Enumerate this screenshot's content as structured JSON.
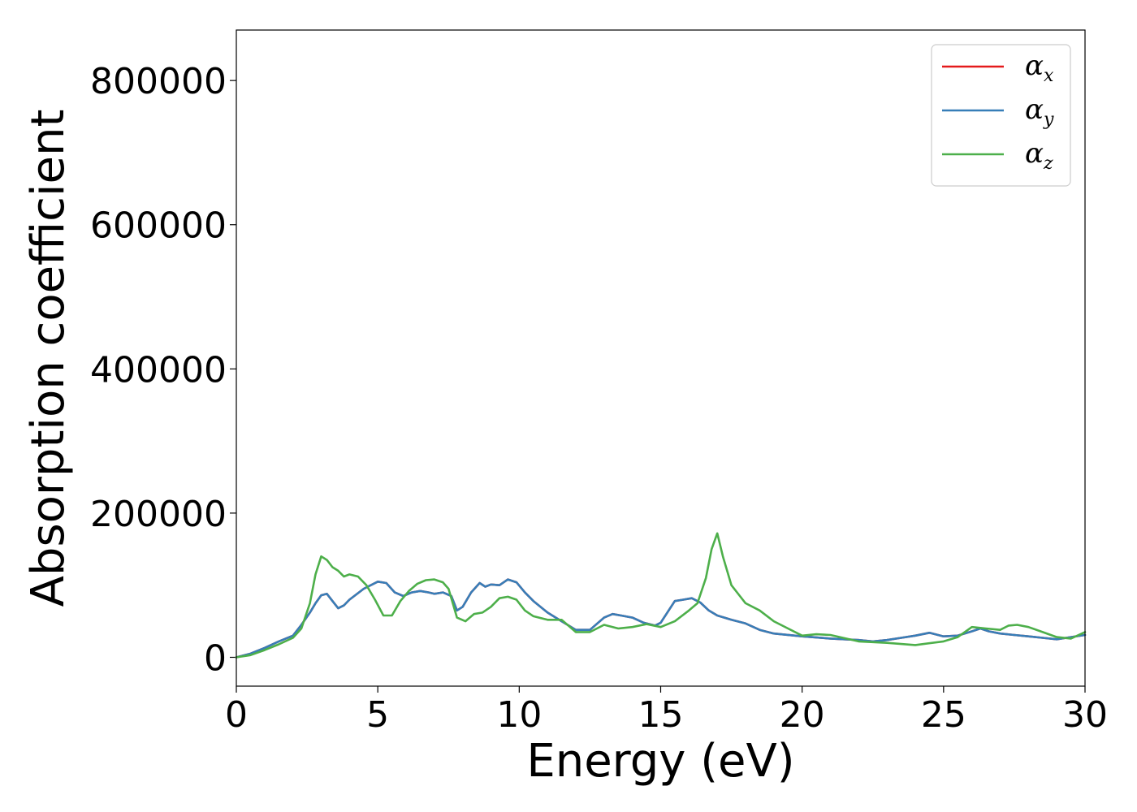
{
  "chart_data": {
    "type": "line",
    "xlabel": "Energy (eV)",
    "ylabel": "Absorption coefficient",
    "xlim": [
      0,
      30
    ],
    "ylim": [
      -40000,
      870000
    ],
    "xticks": [
      0,
      5,
      10,
      15,
      20,
      25,
      30
    ],
    "xtick_labels": [
      "0",
      "5",
      "10",
      "15",
      "20",
      "25",
      "30"
    ],
    "yticks": [
      0,
      200000,
      400000,
      600000,
      800000
    ],
    "ytick_labels": [
      "0",
      "200000",
      "400000",
      "600000",
      "800000"
    ],
    "grid": false,
    "legend_position": "top-right",
    "series": [
      {
        "name": "x",
        "color": "#e41a1c",
        "x": [
          0,
          0.5,
          1,
          1.5,
          2,
          2.3,
          2.6,
          2.8,
          3,
          3.2,
          3.4,
          3.6,
          3.8,
          4,
          4.5,
          5,
          5.3,
          5.6,
          5.9,
          6.2,
          6.5,
          6.8,
          7,
          7.3,
          7.6,
          7.8,
          8,
          8.3,
          8.6,
          8.8,
          9,
          9.3,
          9.6,
          9.9,
          10.2,
          10.5,
          11,
          11.5,
          12,
          12.5,
          13,
          13.3,
          13.6,
          14,
          14.4,
          14.8,
          15,
          15.2,
          15.5,
          15.8,
          16.1,
          16.4,
          16.7,
          17,
          17.5,
          18,
          18.5,
          19,
          20,
          21,
          22,
          22.5,
          23,
          23.5,
          24,
          24.5,
          25,
          25.5,
          26,
          26.3,
          26.6,
          27,
          27.5,
          28,
          28.5,
          29,
          29.5,
          30
        ],
        "y": [
          0,
          5000,
          13000,
          22000,
          30000,
          45000,
          62000,
          75000,
          86000,
          88000,
          78000,
          68000,
          72000,
          80000,
          95000,
          105000,
          103000,
          90000,
          85000,
          90000,
          92000,
          90000,
          88000,
          90000,
          85000,
          65000,
          70000,
          90000,
          103000,
          98000,
          101000,
          100000,
          108000,
          104000,
          90000,
          78000,
          62000,
          50000,
          38000,
          38000,
          55000,
          60000,
          58000,
          55000,
          48000,
          44000,
          48000,
          60000,
          78000,
          80000,
          82000,
          76000,
          65000,
          58000,
          52000,
          47000,
          38000,
          33000,
          29000,
          26000,
          24000,
          22000,
          24000,
          27000,
          30000,
          34000,
          29000,
          30000,
          36000,
          40000,
          36000,
          33000,
          31000,
          29000,
          27000,
          25000,
          28000,
          31000
        ]
      },
      {
        "name": "y",
        "color": "#377eb8",
        "x": [
          0,
          0.5,
          1,
          1.5,
          2,
          2.3,
          2.6,
          2.8,
          3,
          3.2,
          3.4,
          3.6,
          3.8,
          4,
          4.5,
          5,
          5.3,
          5.6,
          5.9,
          6.2,
          6.5,
          6.8,
          7,
          7.3,
          7.6,
          7.8,
          8,
          8.3,
          8.6,
          8.8,
          9,
          9.3,
          9.6,
          9.9,
          10.2,
          10.5,
          11,
          11.5,
          12,
          12.5,
          13,
          13.3,
          13.6,
          14,
          14.4,
          14.8,
          15,
          15.2,
          15.5,
          15.8,
          16.1,
          16.4,
          16.7,
          17,
          17.5,
          18,
          18.5,
          19,
          20,
          21,
          22,
          22.5,
          23,
          23.5,
          24,
          24.5,
          25,
          25.5,
          26,
          26.3,
          26.6,
          27,
          27.5,
          28,
          28.5,
          29,
          29.5,
          30
        ],
        "y": [
          0,
          5000,
          13000,
          22000,
          30000,
          45000,
          62000,
          75000,
          86000,
          88000,
          78000,
          68000,
          72000,
          80000,
          95000,
          105000,
          103000,
          90000,
          85000,
          90000,
          92000,
          90000,
          88000,
          90000,
          85000,
          65000,
          70000,
          90000,
          103000,
          98000,
          101000,
          100000,
          108000,
          104000,
          90000,
          78000,
          62000,
          50000,
          38000,
          38000,
          55000,
          60000,
          58000,
          55000,
          48000,
          44000,
          48000,
          60000,
          78000,
          80000,
          82000,
          76000,
          65000,
          58000,
          52000,
          47000,
          38000,
          33000,
          29000,
          26000,
          24000,
          22000,
          24000,
          27000,
          30000,
          34000,
          29000,
          30000,
          36000,
          40000,
          36000,
          33000,
          31000,
          29000,
          27000,
          25000,
          28000,
          31000
        ]
      },
      {
        "name": "z",
        "color": "#4daf4a",
        "x": [
          0,
          0.5,
          1,
          1.5,
          2,
          2.3,
          2.6,
          2.8,
          3,
          3.2,
          3.4,
          3.6,
          3.8,
          4,
          4.3,
          4.6,
          4.9,
          5.2,
          5.5,
          5.8,
          6.1,
          6.4,
          6.7,
          7,
          7.3,
          7.5,
          7.8,
          8.1,
          8.4,
          8.7,
          9,
          9.3,
          9.6,
          9.9,
          10.2,
          10.5,
          11,
          11.5,
          12,
          12.5,
          13,
          13.5,
          14,
          14.5,
          15,
          15.5,
          16,
          16.3,
          16.6,
          16.8,
          17,
          17.2,
          17.5,
          17.8,
          18,
          18.5,
          19,
          19.5,
          20,
          20.5,
          21,
          22,
          23,
          24,
          25,
          25.5,
          26,
          26.5,
          27,
          27.3,
          27.6,
          28,
          28.5,
          29,
          29.5,
          30
        ],
        "y": [
          0,
          3000,
          10000,
          18000,
          27000,
          40000,
          75000,
          115000,
          140000,
          135000,
          125000,
          120000,
          112000,
          115000,
          112000,
          100000,
          80000,
          58000,
          58000,
          78000,
          92000,
          102000,
          107000,
          108000,
          104000,
          95000,
          55000,
          50000,
          60000,
          62000,
          70000,
          82000,
          84000,
          80000,
          65000,
          57000,
          52000,
          52000,
          35000,
          35000,
          45000,
          40000,
          42000,
          46000,
          42000,
          50000,
          65000,
          75000,
          110000,
          150000,
          172000,
          140000,
          100000,
          85000,
          75000,
          65000,
          50000,
          40000,
          30000,
          32000,
          31000,
          22000,
          20000,
          17000,
          22000,
          28000,
          42000,
          40000,
          38000,
          44000,
          45000,
          42000,
          35000,
          28000,
          26000,
          35000
        ]
      }
    ]
  }
}
